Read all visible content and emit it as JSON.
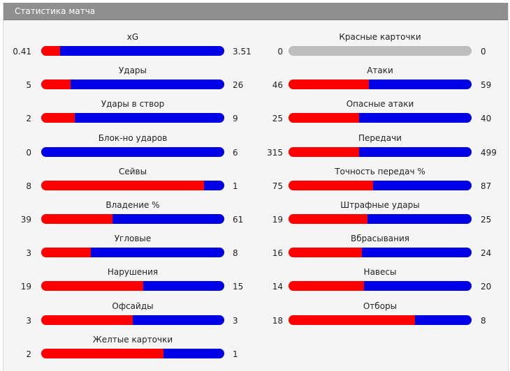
{
  "header": {
    "title": "Статистика матча"
  },
  "colors": {
    "home": "#ff0000",
    "away": "#0000e6",
    "empty": "#bdbdbd"
  },
  "stats": [
    {
      "key": "xg",
      "label": "xG",
      "home": 0.41,
      "away": 3.51,
      "home_text": "0.41",
      "away_text": "3.51"
    },
    {
      "key": "red_cards",
      "label": "Красные карточки",
      "home": 0,
      "away": 0,
      "home_text": "0",
      "away_text": "0"
    },
    {
      "key": "shots",
      "label": "Удары",
      "home": 5,
      "away": 26,
      "home_text": "5",
      "away_text": "26"
    },
    {
      "key": "attacks",
      "label": "Атаки",
      "home": 46,
      "away": 59,
      "home_text": "46",
      "away_text": "59"
    },
    {
      "key": "shots_on_target",
      "label": "Удары в створ",
      "home": 2,
      "away": 9,
      "home_text": "2",
      "away_text": "9"
    },
    {
      "key": "dangerous_attacks",
      "label": "Опасные атаки",
      "home": 25,
      "away": 40,
      "home_text": "25",
      "away_text": "40"
    },
    {
      "key": "blocked_shots",
      "label": "Блок-но ударов",
      "home": 0,
      "away": 6,
      "home_text": "0",
      "away_text": "6"
    },
    {
      "key": "passes",
      "label": "Передачи",
      "home": 315,
      "away": 499,
      "home_text": "315",
      "away_text": "499"
    },
    {
      "key": "saves",
      "label": "Сейвы",
      "home": 8,
      "away": 1,
      "home_text": "8",
      "away_text": "1"
    },
    {
      "key": "pass_accuracy",
      "label": "Точность передач %",
      "home": 75,
      "away": 87,
      "home_text": "75",
      "away_text": "87"
    },
    {
      "key": "possession",
      "label": "Владение %",
      "home": 39,
      "away": 61,
      "home_text": "39",
      "away_text": "61"
    },
    {
      "key": "free_kicks",
      "label": "Штрафные удары",
      "home": 19,
      "away": 25,
      "home_text": "19",
      "away_text": "25"
    },
    {
      "key": "corners",
      "label": "Угловые",
      "home": 3,
      "away": 8,
      "home_text": "3",
      "away_text": "8"
    },
    {
      "key": "throw_ins",
      "label": "Вбрасывания",
      "home": 16,
      "away": 24,
      "home_text": "16",
      "away_text": "24"
    },
    {
      "key": "fouls",
      "label": "Нарушения",
      "home": 19,
      "away": 15,
      "home_text": "19",
      "away_text": "15"
    },
    {
      "key": "crosses",
      "label": "Навесы",
      "home": 14,
      "away": 20,
      "home_text": "14",
      "away_text": "20"
    },
    {
      "key": "offsides",
      "label": "Офсайды",
      "home": 3,
      "away": 3,
      "home_text": "3",
      "away_text": "3"
    },
    {
      "key": "tackles",
      "label": "Отборы",
      "home": 18,
      "away": 8,
      "home_text": "18",
      "away_text": "8"
    },
    {
      "key": "yellow_cards",
      "label": "Желтые карточки",
      "home": 2,
      "away": 1,
      "home_text": "2",
      "away_text": "1"
    }
  ]
}
